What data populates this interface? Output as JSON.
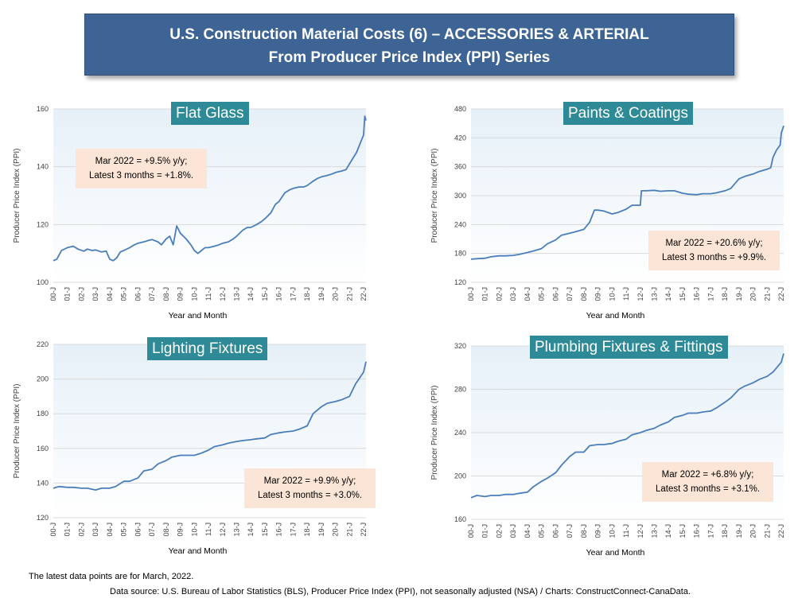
{
  "header": {
    "line1": "U.S. Construction Material Costs (6) – ACCESSORIES & ARTERIAL",
    "line2": "From Producer Price Index (PPI) Series"
  },
  "footer": {
    "note": "The latest data points are for March, 2022.",
    "source": "Data source: U.S. Bureau of Labor Statistics (BLS), Producer Price Index (PPI), not seasonally adjusted (NSA) / Charts: ConstructConnect-CanaData."
  },
  "chart_data": [
    {
      "type": "line",
      "title": "Flat Glass",
      "xlabel": "Year and Month",
      "ylabel": "Producer Price Index (PPI)",
      "ylim": [
        100,
        160
      ],
      "yticks": [
        100,
        120,
        140,
        160
      ],
      "xticks": [
        "00-J",
        "01-J",
        "02-J",
        "03-J",
        "04-J",
        "05-J",
        "06-J",
        "07-J",
        "08-J",
        "09-J",
        "10-J",
        "11-J",
        "12-J",
        "13-J",
        "14-J",
        "15-J",
        "16-J",
        "17-J",
        "18-J",
        "19-J",
        "20-J",
        "21-J",
        "22-J"
      ],
      "xrange": [
        "2000-01",
        "2022-03"
      ],
      "annotation": {
        "line1": "Mar 2022 = +9.5% y/y;",
        "line2": "Latest 3 months = +1.8%."
      },
      "series": [
        {
          "points": [
            [
              "2000-01",
              107.5
            ],
            [
              "2000-04",
              108
            ],
            [
              "2000-08",
              111
            ],
            [
              "2001-01",
              112
            ],
            [
              "2001-06",
              112.5
            ],
            [
              "2001-10",
              111.5
            ],
            [
              "2002-03",
              110.8
            ],
            [
              "2002-06",
              111.5
            ],
            [
              "2002-10",
              111
            ],
            [
              "2003-01",
              111.2
            ],
            [
              "2003-06",
              110.5
            ],
            [
              "2003-10",
              110.8
            ],
            [
              "2004-01",
              108
            ],
            [
              "2004-04",
              107.5
            ],
            [
              "2004-07",
              108.5
            ],
            [
              "2004-10",
              110.5
            ],
            [
              "2005-01",
              111
            ],
            [
              "2005-06",
              112
            ],
            [
              "2005-10",
              113
            ],
            [
              "2006-01",
              113.5
            ],
            [
              "2006-06",
              114
            ],
            [
              "2006-10",
              114.5
            ],
            [
              "2007-01",
              114.8
            ],
            [
              "2007-06",
              114
            ],
            [
              "2007-09",
              113
            ],
            [
              "2008-01",
              115
            ],
            [
              "2008-04",
              116
            ],
            [
              "2008-07",
              113
            ],
            [
              "2008-10",
              119.5
            ],
            [
              "2009-01",
              117
            ],
            [
              "2009-06",
              115
            ],
            [
              "2009-10",
              113
            ],
            [
              "2010-01",
              111
            ],
            [
              "2010-04",
              110
            ],
            [
              "2010-07",
              111
            ],
            [
              "2010-10",
              112
            ],
            [
              "2011-01",
              112
            ],
            [
              "2011-06",
              112.5
            ],
            [
              "2011-10",
              113
            ],
            [
              "2012-01",
              113.5
            ],
            [
              "2012-06",
              114
            ],
            [
              "2012-10",
              115
            ],
            [
              "2013-01",
              116
            ],
            [
              "2013-06",
              118
            ],
            [
              "2013-10",
              119
            ],
            [
              "2014-01",
              119
            ],
            [
              "2014-06",
              120
            ],
            [
              "2014-10",
              121
            ],
            [
              "2015-01",
              122
            ],
            [
              "2015-06",
              124
            ],
            [
              "2015-10",
              127
            ],
            [
              "2016-01",
              128
            ],
            [
              "2016-06",
              131
            ],
            [
              "2016-10",
              132
            ],
            [
              "2017-01",
              132.5
            ],
            [
              "2017-06",
              133
            ],
            [
              "2017-10",
              133
            ],
            [
              "2018-01",
              133.5
            ],
            [
              "2018-06",
              135
            ],
            [
              "2018-10",
              136
            ],
            [
              "2019-01",
              136.5
            ],
            [
              "2019-06",
              137
            ],
            [
              "2019-10",
              137.5
            ],
            [
              "2020-01",
              138
            ],
            [
              "2020-06",
              138.5
            ],
            [
              "2020-10",
              139
            ],
            [
              "2021-01",
              141
            ],
            [
              "2021-04",
              143
            ],
            [
              "2021-07",
              145
            ],
            [
              "2021-10",
              148
            ],
            [
              "2022-01",
              151
            ],
            [
              "2022-02",
              157.5
            ],
            [
              "2022-03",
              156
            ]
          ]
        }
      ]
    },
    {
      "type": "line",
      "title": "Paints & Coatings",
      "xlabel": "Year and Month",
      "ylabel": "Producer Price Index (PPI)",
      "ylim": [
        120,
        480
      ],
      "yticks": [
        120,
        180,
        240,
        300,
        360,
        420,
        480
      ],
      "xticks": [
        "00-J",
        "01-J",
        "02-J",
        "03-J",
        "04-J",
        "05-J",
        "06-J",
        "07-J",
        "08-J",
        "09-J",
        "10-J",
        "11-J",
        "12-J",
        "13-J",
        "14-J",
        "15-J",
        "16-J",
        "17-J",
        "18-J",
        "19-J",
        "20-J",
        "21-J",
        "22-J"
      ],
      "xrange": [
        "2000-01",
        "2022-03"
      ],
      "annotation": {
        "line1": "Mar 2022 = +20.6% y/y;",
        "line2": "Latest 3 months = +9.9%."
      },
      "series": [
        {
          "points": [
            [
              "2000-01",
              168
            ],
            [
              "2000-06",
              169
            ],
            [
              "2001-01",
              170
            ],
            [
              "2001-06",
              173
            ],
            [
              "2002-01",
              175
            ],
            [
              "2002-06",
              175
            ],
            [
              "2003-01",
              176
            ],
            [
              "2003-06",
              178
            ],
            [
              "2004-01",
              182
            ],
            [
              "2004-06",
              185
            ],
            [
              "2005-01",
              190
            ],
            [
              "2005-06",
              200
            ],
            [
              "2006-01",
              208
            ],
            [
              "2006-06",
              218
            ],
            [
              "2007-01",
              222
            ],
            [
              "2007-06",
              225
            ],
            [
              "2008-01",
              230
            ],
            [
              "2008-06",
              245
            ],
            [
              "2008-10",
              270
            ],
            [
              "2009-01",
              270
            ],
            [
              "2009-06",
              268
            ],
            [
              "2010-01",
              262
            ],
            [
              "2010-06",
              265
            ],
            [
              "2011-01",
              272
            ],
            [
              "2011-06",
              280
            ],
            [
              "2012-01",
              280
            ],
            [
              "2012-02",
              310
            ],
            [
              "2012-06",
              310
            ],
            [
              "2013-01",
              311
            ],
            [
              "2013-06",
              309
            ],
            [
              "2014-01",
              310
            ],
            [
              "2014-06",
              310
            ],
            [
              "2015-01",
              305
            ],
            [
              "2015-06",
              303
            ],
            [
              "2016-01",
              302
            ],
            [
              "2016-06",
              304
            ],
            [
              "2017-01",
              304
            ],
            [
              "2017-06",
              306
            ],
            [
              "2018-01",
              310
            ],
            [
              "2018-06",
              315
            ],
            [
              "2019-01",
              335
            ],
            [
              "2019-06",
              340
            ],
            [
              "2020-01",
              345
            ],
            [
              "2020-06",
              350
            ],
            [
              "2021-01",
              355
            ],
            [
              "2021-04",
              358
            ],
            [
              "2021-06",
              380
            ],
            [
              "2021-09",
              395
            ],
            [
              "2021-12",
              405
            ],
            [
              "2022-01",
              430
            ],
            [
              "2022-03",
              445
            ]
          ]
        }
      ]
    },
    {
      "type": "line",
      "title": "Lighting Fixtures",
      "xlabel": "Year and Month",
      "ylabel": "Producer Price Index (PPI)",
      "ylim": [
        120,
        220
      ],
      "yticks": [
        120,
        140,
        160,
        180,
        200,
        220
      ],
      "xticks": [
        "00-J",
        "01-J",
        "02-J",
        "03-J",
        "04-J",
        "05-J",
        "06-J",
        "07-J",
        "08-J",
        "09-J",
        "10-J",
        "11-J",
        "12-J",
        "13-J",
        "14-J",
        "15-J",
        "16-J",
        "17-J",
        "18-J",
        "19-J",
        "20-J",
        "21-J",
        "22-J"
      ],
      "xrange": [
        "2000-01",
        "2022-03"
      ],
      "annotation": {
        "line1": "Mar 2022 = +9.9% y/y;",
        "line2": "Latest 3 months = +3.0%."
      },
      "series": [
        {
          "points": [
            [
              "2000-01",
              137
            ],
            [
              "2000-06",
              138
            ],
            [
              "2001-01",
              137.5
            ],
            [
              "2001-06",
              137.5
            ],
            [
              "2002-01",
              137
            ],
            [
              "2002-06",
              137
            ],
            [
              "2003-01",
              136
            ],
            [
              "2003-06",
              137
            ],
            [
              "2004-01",
              137
            ],
            [
              "2004-06",
              138
            ],
            [
              "2005-01",
              141
            ],
            [
              "2005-06",
              141
            ],
            [
              "2006-01",
              143
            ],
            [
              "2006-06",
              147
            ],
            [
              "2007-01",
              148
            ],
            [
              "2007-06",
              151
            ],
            [
              "2008-01",
              153
            ],
            [
              "2008-06",
              155
            ],
            [
              "2009-01",
              156
            ],
            [
              "2009-06",
              156
            ],
            [
              "2010-01",
              156
            ],
            [
              "2010-06",
              157
            ],
            [
              "2011-01",
              159
            ],
            [
              "2011-06",
              161
            ],
            [
              "2012-01",
              162
            ],
            [
              "2012-06",
              163
            ],
            [
              "2013-01",
              164
            ],
            [
              "2013-06",
              164.5
            ],
            [
              "2014-01",
              165
            ],
            [
              "2014-06",
              165.5
            ],
            [
              "2015-01",
              166
            ],
            [
              "2015-06",
              168
            ],
            [
              "2016-01",
              169
            ],
            [
              "2016-06",
              169.5
            ],
            [
              "2017-01",
              170
            ],
            [
              "2017-06",
              171
            ],
            [
              "2018-01",
              173
            ],
            [
              "2018-06",
              180
            ],
            [
              "2019-01",
              184
            ],
            [
              "2019-06",
              186
            ],
            [
              "2020-01",
              187
            ],
            [
              "2020-06",
              188
            ],
            [
              "2021-01",
              190
            ],
            [
              "2021-06",
              197
            ],
            [
              "2022-01",
              204
            ],
            [
              "2022-03",
              210
            ]
          ]
        }
      ]
    },
    {
      "type": "line",
      "title": "Plumbing Fixtures & Fittings",
      "xlabel": "Year and Month",
      "ylabel": "Producer Price Index (PPI)",
      "ylim": [
        160,
        320
      ],
      "yticks": [
        160,
        200,
        240,
        280,
        320
      ],
      "xticks": [
        "00-J",
        "01-J",
        "02-J",
        "03-J",
        "04-J",
        "05-J",
        "06-J",
        "07-J",
        "08-J",
        "09-J",
        "10-J",
        "11-J",
        "12-J",
        "13-J",
        "14-J",
        "15-J",
        "16-J",
        "17-J",
        "18-J",
        "19-J",
        "20-J",
        "21-J",
        "22-J"
      ],
      "xrange": [
        "2000-01",
        "2022-03"
      ],
      "annotation": {
        "line1": "Mar 2022 = +6.8% y/y;",
        "line2": "Latest 3 months = +3.1%."
      },
      "series": [
        {
          "points": [
            [
              "2000-01",
              180
            ],
            [
              "2000-06",
              182
            ],
            [
              "2001-01",
              181
            ],
            [
              "2001-06",
              182
            ],
            [
              "2002-01",
              182
            ],
            [
              "2002-06",
              183
            ],
            [
              "2003-01",
              183
            ],
            [
              "2003-06",
              184
            ],
            [
              "2004-01",
              185
            ],
            [
              "2004-06",
              190
            ],
            [
              "2005-01",
              195
            ],
            [
              "2005-06",
              198
            ],
            [
              "2006-01",
              203
            ],
            [
              "2006-06",
              210
            ],
            [
              "2007-01",
              218
            ],
            [
              "2007-06",
              222
            ],
            [
              "2008-01",
              222
            ],
            [
              "2008-06",
              228
            ],
            [
              "2009-01",
              229
            ],
            [
              "2009-06",
              229
            ],
            [
              "2010-01",
              230
            ],
            [
              "2010-06",
              232
            ],
            [
              "2011-01",
              234
            ],
            [
              "2011-06",
              238
            ],
            [
              "2012-01",
              240
            ],
            [
              "2012-06",
              242
            ],
            [
              "2013-01",
              244
            ],
            [
              "2013-06",
              247
            ],
            [
              "2014-01",
              250
            ],
            [
              "2014-06",
              254
            ],
            [
              "2015-01",
              256
            ],
            [
              "2015-06",
              258
            ],
            [
              "2016-01",
              258
            ],
            [
              "2016-06",
              259
            ],
            [
              "2017-01",
              260
            ],
            [
              "2017-06",
              263
            ],
            [
              "2018-01",
              268
            ],
            [
              "2018-06",
              272
            ],
            [
              "2019-01",
              280
            ],
            [
              "2019-06",
              283
            ],
            [
              "2020-01",
              286
            ],
            [
              "2020-06",
              289
            ],
            [
              "2021-01",
              292
            ],
            [
              "2021-06",
              296
            ],
            [
              "2022-01",
              305
            ],
            [
              "2022-03",
              313
            ]
          ]
        }
      ]
    }
  ]
}
